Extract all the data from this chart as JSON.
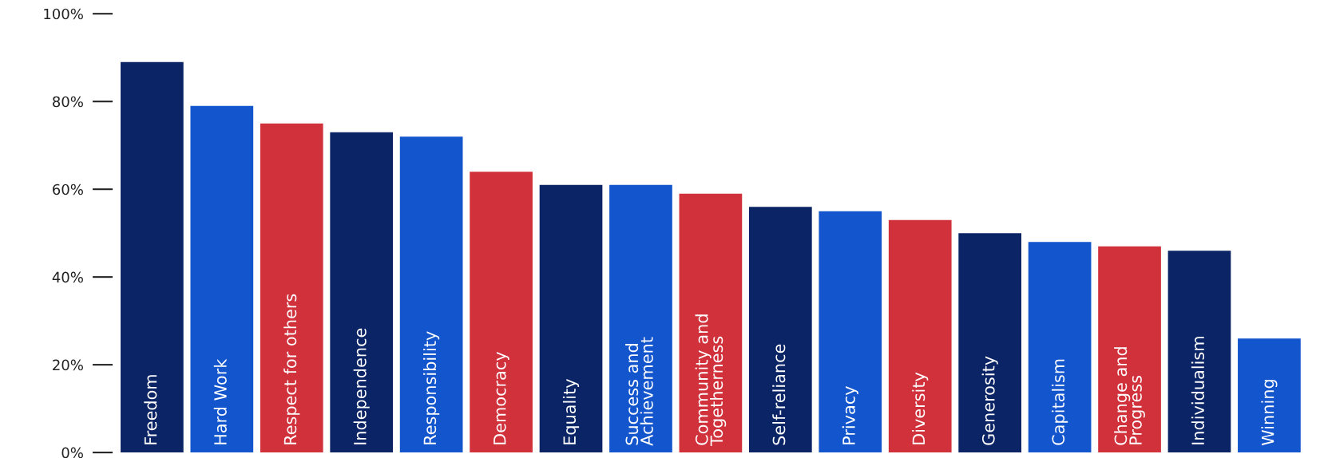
{
  "chart_data": {
    "type": "bar",
    "categories": [
      "Freedom",
      "Hard Work",
      "Respect for others",
      "Independence",
      "Responsibility",
      "Democracy",
      "Equality",
      "Success and\nAchievement",
      "Community and\nTogetherness",
      "Self-reliance",
      "Privacy",
      "Diversity",
      "Generosity",
      "Capitalism",
      "Change and\nProgress",
      "Individualism",
      "Winning"
    ],
    "values": [
      89,
      79,
      75,
      73,
      72,
      64,
      61,
      61,
      59,
      56,
      55,
      53,
      50,
      48,
      47,
      46,
      26
    ],
    "colors": [
      "#0b2466",
      "#1255cc",
      "#d0313b",
      "#0b2466",
      "#1255cc",
      "#d0313b",
      "#0b2466",
      "#1255cc",
      "#d0313b",
      "#0b2466",
      "#1255cc",
      "#d0313b",
      "#0b2466",
      "#1255cc",
      "#d0313b",
      "#0b2466",
      "#1255cc"
    ],
    "ylim": [
      0,
      100
    ],
    "yticks": [
      {
        "value": 0,
        "label": "0%"
      },
      {
        "value": 20,
        "label": "20%"
      },
      {
        "value": 40,
        "label": "40%"
      },
      {
        "value": 60,
        "label": "60%"
      },
      {
        "value": 80,
        "label": "80%"
      },
      {
        "value": 100,
        "label": "100%"
      }
    ],
    "grid": false
  }
}
